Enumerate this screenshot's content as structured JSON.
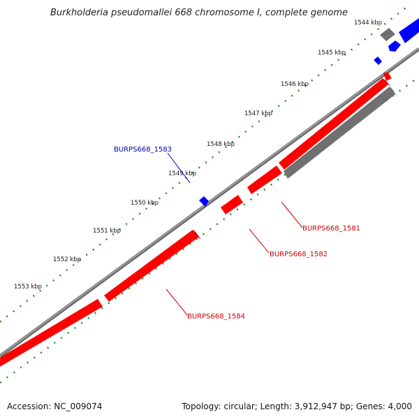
{
  "title": "Burkholderia pseudomallei 668 chromosome I, complete genome",
  "footer": {
    "accession": "Accession: NC_009074",
    "summary": "Topology: circular; Length: 3,912,947 bp; Genes: 4,000"
  },
  "ticks": [
    {
      "label": "1544 kbp"
    },
    {
      "label": "1545 kbp"
    },
    {
      "label": "1546 kbp"
    },
    {
      "label": "1547 kbp"
    },
    {
      "label": "1548 kbp"
    },
    {
      "label": "1549 kbp"
    },
    {
      "label": "1550 kbp"
    },
    {
      "label": "1551 kbp"
    },
    {
      "label": "1552 kbp"
    },
    {
      "label": "1553 kbp"
    }
  ],
  "gene_labels": [
    {
      "name": "BURPS668_1583",
      "color": "#0000aa"
    },
    {
      "name": "BURPS668_1581",
      "color": "#cc0000"
    },
    {
      "name": "BURPS668_1582",
      "color": "#cc0000"
    },
    {
      "name": "BURPS668_1584",
      "color": "#cc0000"
    }
  ],
  "colors": {
    "backbone": "#808080",
    "cds_red": "#ff0000",
    "cds_blue": "#0000ff",
    "cds_gray": "#707070",
    "tick_green": "#228b22"
  }
}
